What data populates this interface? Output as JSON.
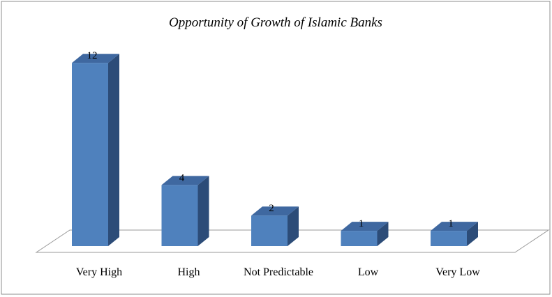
{
  "chart_data": {
    "type": "bar",
    "title": "Opportunity of Growth of Islamic Banks",
    "categories": [
      "Very High",
      "High",
      "Not Predictable",
      "Low",
      "Very Low"
    ],
    "values": [
      12,
      4,
      2,
      1,
      1
    ],
    "ylim": [
      0,
      13
    ],
    "grid": false,
    "legend": "none",
    "style": "3d-column",
    "colors": {
      "front": "#4f81bd",
      "top": "#3f68a0",
      "side": "#2c4c78",
      "frame": "#8c8c8c"
    }
  }
}
